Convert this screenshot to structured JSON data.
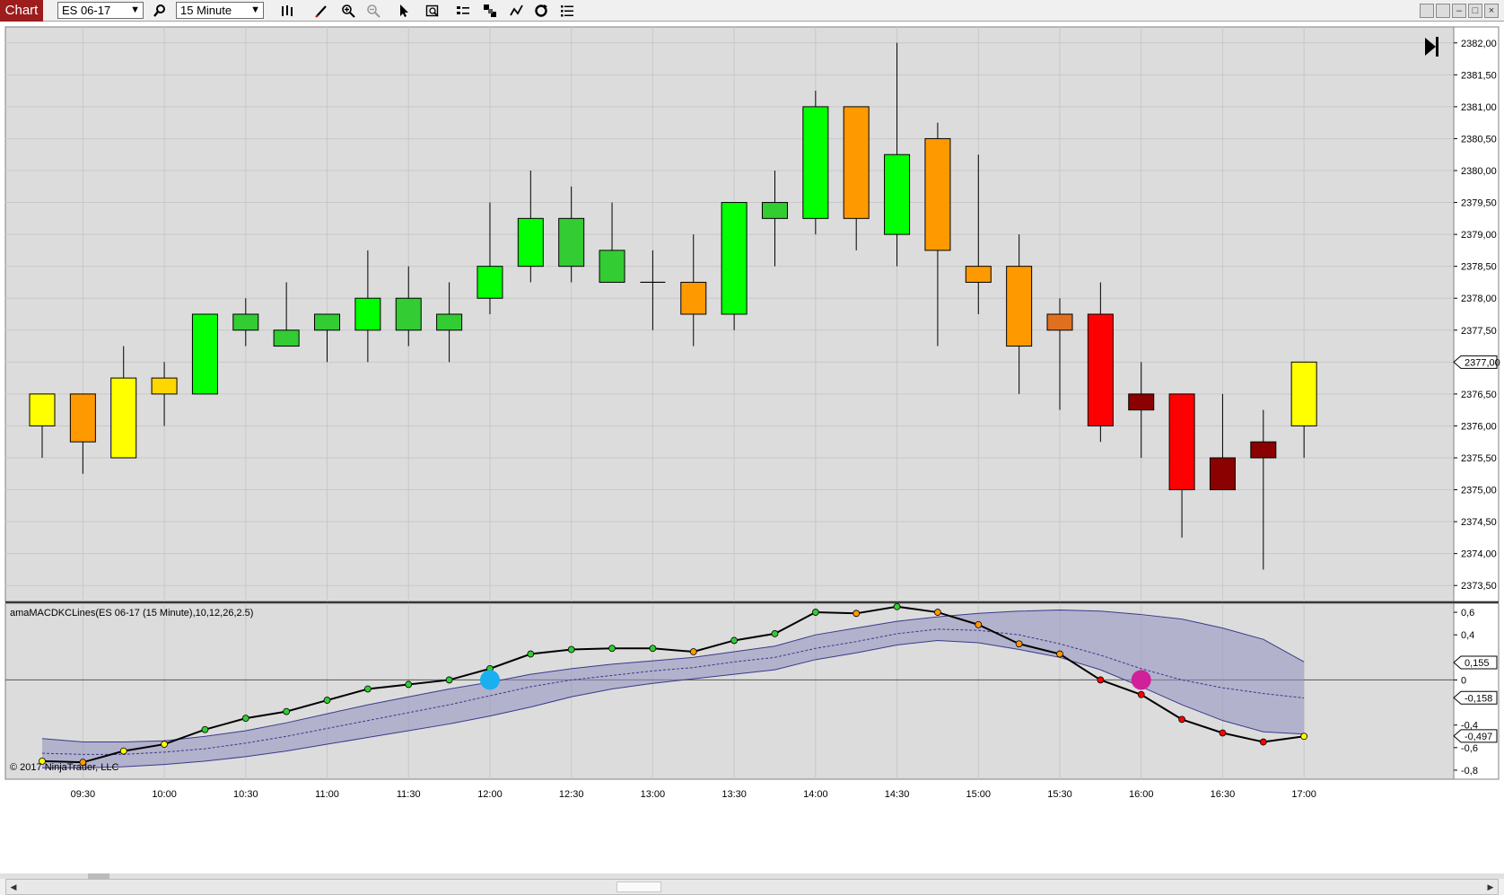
{
  "toolbar": {
    "tab_label": "Chart",
    "instrument": "ES 06-17",
    "interval": "15 Minute",
    "icons": [
      "search-icon",
      "bar-type-icon",
      "pencil-icon",
      "zoom-in-icon",
      "zoom-out-icon",
      "pointer-icon",
      "data-box-icon",
      "properties-icon",
      "strategies-icon",
      "indicators-icon",
      "refresh-icon",
      "list-icon"
    ],
    "window_buttons": [
      "",
      "",
      "–",
      "□",
      "×"
    ]
  },
  "price_panel": {
    "price_axis_labels": [
      "2382,00",
      "2381,50",
      "2381,00",
      "2380,50",
      "2380,00",
      "2379,50",
      "2379,00",
      "2378,50",
      "2378,00",
      "2377,50",
      "2377,00",
      "2376,50",
      "2376,00",
      "2375,50",
      "2375,00",
      "2374,50",
      "2374,00",
      "2373,50"
    ],
    "last_price": "2377,00",
    "go_to_end_icon": "skip-end-icon"
  },
  "indicator_panel": {
    "label": "amaMACDKCLines(ES 06-17 (15 Minute),10,12,26,2.5)",
    "axis_labels": [
      "0,6",
      "0,4",
      "0",
      "-0,4",
      "-0,6",
      "-0,8"
    ],
    "markers": [
      "0,155",
      "-0,158",
      "-0,497"
    ],
    "copyright": "© 2017 NinjaTrader, LLC"
  },
  "time_axis": [
    "09:30",
    "10:00",
    "10:30",
    "11:00",
    "11:30",
    "12:00",
    "12:30",
    "13:00",
    "13:30",
    "14:00",
    "14:30",
    "15:00",
    "15:30",
    "16:00",
    "16:30",
    "17:00"
  ],
  "chart_data": {
    "type": "candlestick",
    "series": [
      {
        "name": "price",
        "bars": [
          {
            "t": "09:15",
            "o": 2376.0,
            "h": 2376.5,
            "l": 2375.5,
            "c": 2376.5,
            "color": "#ffff00"
          },
          {
            "t": "09:30",
            "o": 2376.5,
            "h": 2376.5,
            "l": 2375.25,
            "c": 2375.75,
            "color": "#ff9900"
          },
          {
            "t": "09:45",
            "o": 2375.5,
            "h": 2377.25,
            "l": 2375.5,
            "c": 2376.75,
            "color": "#ffff00"
          },
          {
            "t": "10:00",
            "o": 2376.5,
            "h": 2377.0,
            "l": 2376.0,
            "c": 2376.75,
            "color": "#ffd700"
          },
          {
            "t": "10:15",
            "o": 2376.5,
            "h": 2377.75,
            "l": 2376.5,
            "c": 2377.75,
            "color": "#00ff00"
          },
          {
            "t": "10:30",
            "o": 2377.5,
            "h": 2378.0,
            "l": 2377.25,
            "c": 2377.75,
            "color": "#33cc33"
          },
          {
            "t": "10:45",
            "o": 2377.25,
            "h": 2378.25,
            "l": 2377.25,
            "c": 2377.5,
            "color": "#33cc33"
          },
          {
            "t": "11:00",
            "o": 2377.5,
            "h": 2377.75,
            "l": 2377.0,
            "c": 2377.75,
            "color": "#33cc33"
          },
          {
            "t": "11:15",
            "o": 2377.5,
            "h": 2378.75,
            "l": 2377.0,
            "c": 2378.0,
            "color": "#00ff00"
          },
          {
            "t": "11:30",
            "o": 2377.5,
            "h": 2378.5,
            "l": 2377.25,
            "c": 2378.0,
            "color": "#33cc33"
          },
          {
            "t": "11:45",
            "o": 2377.5,
            "h": 2378.25,
            "l": 2377.0,
            "c": 2377.75,
            "color": "#33cc33"
          },
          {
            "t": "12:00",
            "o": 2378.0,
            "h": 2379.5,
            "l": 2377.75,
            "c": 2378.5,
            "color": "#00ff00"
          },
          {
            "t": "12:15",
            "o": 2378.5,
            "h": 2380.0,
            "l": 2378.25,
            "c": 2379.25,
            "color": "#00ff00"
          },
          {
            "t": "12:30",
            "o": 2378.5,
            "h": 2379.75,
            "l": 2378.25,
            "c": 2379.25,
            "color": "#33cc33"
          },
          {
            "t": "12:45",
            "o": 2378.25,
            "h": 2379.5,
            "l": 2378.25,
            "c": 2378.75,
            "color": "#33cc33"
          },
          {
            "t": "13:00",
            "o": 2378.25,
            "h": 2378.75,
            "l": 2377.5,
            "c": 2378.25,
            "color": "#000000"
          },
          {
            "t": "13:15",
            "o": 2378.25,
            "h": 2379.0,
            "l": 2377.25,
            "c": 2377.75,
            "color": "#ff9900"
          },
          {
            "t": "13:30",
            "o": 2377.75,
            "h": 2379.5,
            "l": 2377.5,
            "c": 2379.5,
            "color": "#00ff00"
          },
          {
            "t": "13:45",
            "o": 2379.25,
            "h": 2380.0,
            "l": 2378.5,
            "c": 2379.5,
            "color": "#33cc33"
          },
          {
            "t": "14:00",
            "o": 2379.25,
            "h": 2381.25,
            "l": 2379.0,
            "c": 2381.0,
            "color": "#00ff00"
          },
          {
            "t": "14:15",
            "o": 2381.0,
            "h": 2381.0,
            "l": 2378.75,
            "c": 2379.25,
            "color": "#ff9900"
          },
          {
            "t": "14:30",
            "o": 2379.0,
            "h": 2382.0,
            "l": 2378.5,
            "c": 2380.25,
            "color": "#00ff00"
          },
          {
            "t": "14:45",
            "o": 2380.5,
            "h": 2380.75,
            "l": 2377.25,
            "c": 2378.75,
            "color": "#ff9900"
          },
          {
            "t": "15:00",
            "o": 2378.5,
            "h": 2380.25,
            "l": 2377.75,
            "c": 2378.25,
            "color": "#ff9900"
          },
          {
            "t": "15:15",
            "o": 2378.5,
            "h": 2379.0,
            "l": 2376.5,
            "c": 2377.25,
            "color": "#ff9900"
          },
          {
            "t": "15:30",
            "o": 2377.75,
            "h": 2378.0,
            "l": 2376.25,
            "c": 2377.5,
            "color": "#e07020"
          },
          {
            "t": "15:45",
            "o": 2377.75,
            "h": 2378.25,
            "l": 2375.75,
            "c": 2376.0,
            "color": "#ff0000"
          },
          {
            "t": "16:00",
            "o": 2376.5,
            "h": 2377.0,
            "l": 2375.5,
            "c": 2376.25,
            "color": "#8b0000"
          },
          {
            "t": "16:15",
            "o": 2376.5,
            "h": 2376.5,
            "l": 2374.25,
            "c": 2375.0,
            "color": "#ff0000"
          },
          {
            "t": "16:30",
            "o": 2375.5,
            "h": 2376.5,
            "l": 2375.0,
            "c": 2375.0,
            "color": "#8b0000"
          },
          {
            "t": "16:45",
            "o": 2375.75,
            "h": 2376.25,
            "l": 2373.75,
            "c": 2375.5,
            "color": "#8b0000"
          },
          {
            "t": "17:00",
            "o": 2376.0,
            "h": 2377.0,
            "l": 2375.5,
            "c": 2377.0,
            "color": "#ffff00"
          }
        ]
      },
      {
        "name": "macd",
        "values": [
          -0.72,
          -0.73,
          -0.63,
          -0.57,
          -0.44,
          -0.34,
          -0.28,
          -0.18,
          -0.08,
          -0.04,
          0.0,
          0.1,
          0.23,
          0.27,
          0.28,
          0.28,
          0.25,
          0.35,
          0.41,
          0.6,
          0.59,
          0.65,
          0.6,
          0.49,
          0.32,
          0.23,
          0.0,
          -0.13,
          -0.35,
          -0.47,
          -0.55,
          -0.5
        ],
        "dot_colors": [
          "#ffff00",
          "#ff9900",
          "#ffff00",
          "#ffff00",
          "#33cc33",
          "#33cc33",
          "#33cc33",
          "#33cc33",
          "#33cc33",
          "#33cc33",
          "#33cc33",
          "#33cc33",
          "#33cc33",
          "#33cc33",
          "#33cc33",
          "#33cc33",
          "#ff9900",
          "#33cc33",
          "#33cc33",
          "#33cc33",
          "#ff9900",
          "#33cc33",
          "#ff9900",
          "#ff9900",
          "#ff9900",
          "#ff9900",
          "#ff0000",
          "#ff0000",
          "#ff0000",
          "#ff0000",
          "#ff0000",
          "#ffff00"
        ]
      },
      {
        "name": "band_upper",
        "values": [
          -0.52,
          -0.55,
          -0.55,
          -0.54,
          -0.5,
          -0.45,
          -0.38,
          -0.3,
          -0.22,
          -0.15,
          -0.08,
          -0.02,
          0.05,
          0.1,
          0.14,
          0.17,
          0.2,
          0.25,
          0.3,
          0.4,
          0.46,
          0.52,
          0.56,
          0.59,
          0.61,
          0.62,
          0.61,
          0.58,
          0.54,
          0.46,
          0.36,
          0.16
        ]
      },
      {
        "name": "band_mid",
        "values": [
          -0.65,
          -0.66,
          -0.66,
          -0.64,
          -0.61,
          -0.56,
          -0.5,
          -0.43,
          -0.36,
          -0.29,
          -0.22,
          -0.14,
          -0.06,
          0.0,
          0.04,
          0.08,
          0.11,
          0.16,
          0.2,
          0.28,
          0.34,
          0.41,
          0.45,
          0.44,
          0.4,
          0.32,
          0.22,
          0.1,
          0.0,
          -0.07,
          -0.12,
          -0.16
        ]
      },
      {
        "name": "band_lower",
        "values": [
          -0.78,
          -0.78,
          -0.77,
          -0.75,
          -0.72,
          -0.68,
          -0.63,
          -0.57,
          -0.51,
          -0.45,
          -0.39,
          -0.32,
          -0.24,
          -0.15,
          -0.08,
          -0.03,
          0.01,
          0.05,
          0.09,
          0.18,
          0.24,
          0.31,
          0.35,
          0.33,
          0.27,
          0.2,
          0.09,
          -0.06,
          -0.22,
          -0.36,
          -0.46,
          -0.48
        ]
      }
    ],
    "signals": [
      {
        "t": "12:00",
        "value": 0.0,
        "color": "#1ab0f0"
      },
      {
        "t": "16:00",
        "value": 0.0,
        "color": "#d0209a"
      }
    ],
    "ylim_price": [
      2373.25,
      2382.25
    ],
    "ylim_indicator": [
      -0.88,
      0.68
    ]
  },
  "colors": {
    "plot_bg": "#dcdcdc",
    "band_fill": "#8f8fc0",
    "band_line": "#3a3a8c",
    "accent_tab": "#9d1c1c"
  }
}
